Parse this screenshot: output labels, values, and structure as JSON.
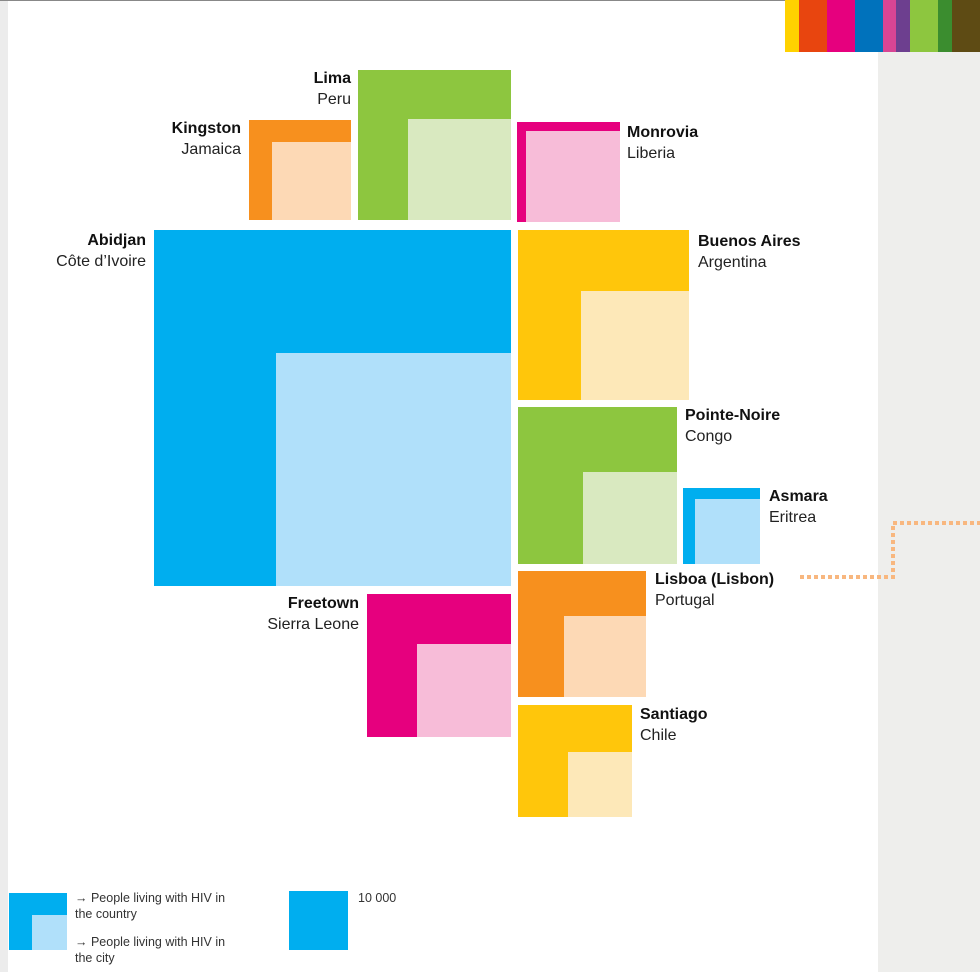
{
  "cities": [
    {
      "city": "Lima",
      "country": "Peru"
    },
    {
      "city": "Kingston",
      "country": "Jamaica"
    },
    {
      "city": "Monrovia",
      "country": "Liberia"
    },
    {
      "city": "Abidjan",
      "country": "Côte d’Ivoire"
    },
    {
      "city": "Buenos Aires",
      "country": "Argentina"
    },
    {
      "city": "Pointe-Noire",
      "country": "Congo"
    },
    {
      "city": "Asmara",
      "country": "Eritrea"
    },
    {
      "city": "Lisboa (Lisbon)",
      "country": "Portugal"
    },
    {
      "city": "Freetown",
      "country": "Sierra Leone"
    },
    {
      "city": "Santiago",
      "country": "Chile"
    }
  ],
  "legend": {
    "country": "→ People living with HIV in the country",
    "city": "→ People living with HIV in the city",
    "scale": "10 000"
  }
}
